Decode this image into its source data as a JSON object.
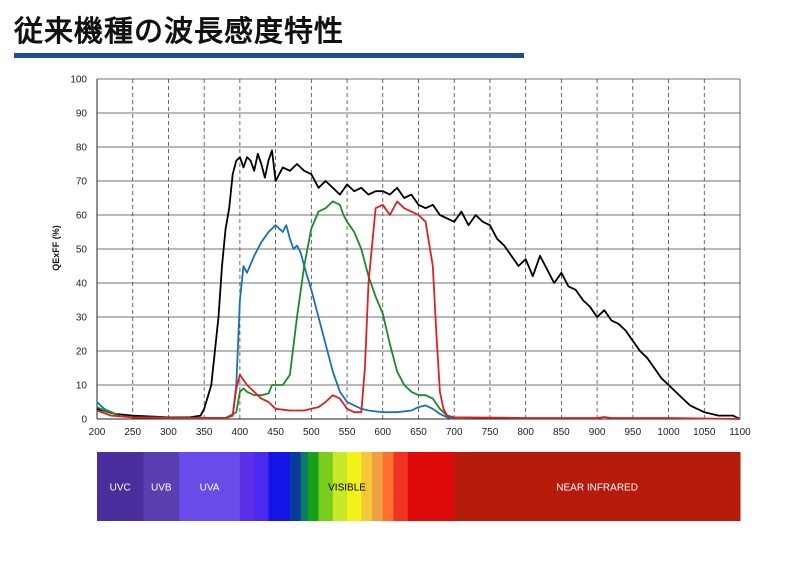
{
  "title": "従来機種の波長感度特性",
  "colors": {
    "accent": "#1f4e8c",
    "grid": "#444444"
  },
  "chart_data": {
    "type": "line",
    "title": "",
    "xlabel": "",
    "ylabel": "QExFF (%)",
    "xlim": [
      200,
      1100
    ],
    "ylim": [
      0,
      100
    ],
    "x_ticks": [
      200,
      250,
      300,
      350,
      400,
      450,
      500,
      550,
      600,
      650,
      700,
      750,
      800,
      850,
      900,
      950,
      1000,
      1050,
      1100
    ],
    "y_ticks": [
      0,
      10,
      20,
      30,
      40,
      50,
      60,
      70,
      80,
      90,
      100
    ],
    "grid": "vertical dashed, horizontal solid",
    "series": [
      {
        "color": "#000000",
        "points": [
          [
            200,
            3
          ],
          [
            225,
            1.5
          ],
          [
            250,
            1
          ],
          [
            300,
            0.5
          ],
          [
            330,
            0.5
          ],
          [
            345,
            1
          ],
          [
            350,
            3
          ],
          [
            360,
            10
          ],
          [
            370,
            30
          ],
          [
            375,
            45
          ],
          [
            380,
            56
          ],
          [
            385,
            62
          ],
          [
            390,
            72
          ],
          [
            395,
            76
          ],
          [
            400,
            77
          ],
          [
            405,
            74
          ],
          [
            410,
            77
          ],
          [
            415,
            76
          ],
          [
            420,
            73
          ],
          [
            425,
            78
          ],
          [
            430,
            75
          ],
          [
            435,
            71
          ],
          [
            440,
            76
          ],
          [
            445,
            79
          ],
          [
            450,
            70
          ],
          [
            455,
            72
          ],
          [
            460,
            74
          ],
          [
            470,
            73
          ],
          [
            480,
            75
          ],
          [
            490,
            73
          ],
          [
            500,
            72
          ],
          [
            510,
            68
          ],
          [
            520,
            70
          ],
          [
            530,
            68
          ],
          [
            540,
            66
          ],
          [
            550,
            69
          ],
          [
            560,
            67
          ],
          [
            570,
            68
          ],
          [
            580,
            66
          ],
          [
            590,
            67
          ],
          [
            600,
            67
          ],
          [
            610,
            66
          ],
          [
            620,
            68
          ],
          [
            630,
            65
          ],
          [
            640,
            66
          ],
          [
            650,
            63
          ],
          [
            660,
            62
          ],
          [
            670,
            63
          ],
          [
            680,
            60
          ],
          [
            690,
            59
          ],
          [
            700,
            58
          ],
          [
            710,
            61
          ],
          [
            720,
            57
          ],
          [
            730,
            60
          ],
          [
            740,
            58
          ],
          [
            750,
            57
          ],
          [
            760,
            53
          ],
          [
            770,
            51
          ],
          [
            780,
            48
          ],
          [
            790,
            45
          ],
          [
            800,
            47
          ],
          [
            810,
            42
          ],
          [
            820,
            48
          ],
          [
            830,
            44
          ],
          [
            840,
            40
          ],
          [
            850,
            43
          ],
          [
            860,
            39
          ],
          [
            870,
            38
          ],
          [
            880,
            35
          ],
          [
            890,
            33
          ],
          [
            900,
            30
          ],
          [
            910,
            32
          ],
          [
            920,
            29
          ],
          [
            930,
            28
          ],
          [
            940,
            26
          ],
          [
            950,
            23
          ],
          [
            960,
            20
          ],
          [
            970,
            18
          ],
          [
            980,
            15
          ],
          [
            990,
            12
          ],
          [
            1000,
            10
          ],
          [
            1010,
            8
          ],
          [
            1020,
            6
          ],
          [
            1030,
            4
          ],
          [
            1040,
            3
          ],
          [
            1050,
            2
          ],
          [
            1060,
            1.5
          ],
          [
            1070,
            1
          ],
          [
            1080,
            1
          ],
          [
            1090,
            1
          ],
          [
            1100,
            0
          ]
        ]
      },
      {
        "color": "#1b6fb5",
        "points": [
          [
            200,
            5
          ],
          [
            210,
            3
          ],
          [
            220,
            2
          ],
          [
            230,
            1
          ],
          [
            250,
            0.5
          ],
          [
            380,
            0.3
          ],
          [
            390,
            1
          ],
          [
            395,
            10
          ],
          [
            400,
            35
          ],
          [
            405,
            45
          ],
          [
            410,
            43
          ],
          [
            420,
            48
          ],
          [
            430,
            52
          ],
          [
            440,
            55
          ],
          [
            450,
            57
          ],
          [
            460,
            55
          ],
          [
            465,
            57
          ],
          [
            470,
            53
          ],
          [
            475,
            50
          ],
          [
            480,
            51
          ],
          [
            485,
            49
          ],
          [
            490,
            45
          ],
          [
            500,
            38
          ],
          [
            510,
            30
          ],
          [
            520,
            22
          ],
          [
            530,
            14
          ],
          [
            540,
            8
          ],
          [
            550,
            5
          ],
          [
            560,
            4
          ],
          [
            570,
            3
          ],
          [
            580,
            2.5
          ],
          [
            600,
            2
          ],
          [
            620,
            2
          ],
          [
            640,
            2.5
          ],
          [
            650,
            3.5
          ],
          [
            660,
            4
          ],
          [
            670,
            3
          ],
          [
            680,
            1.5
          ],
          [
            690,
            0.5
          ],
          [
            700,
            0
          ]
        ]
      },
      {
        "color": "#1b8a2a",
        "points": [
          [
            200,
            3.5
          ],
          [
            210,
            2.5
          ],
          [
            220,
            2
          ],
          [
            230,
            1
          ],
          [
            250,
            0.5
          ],
          [
            380,
            0.3
          ],
          [
            395,
            2
          ],
          [
            400,
            8
          ],
          [
            405,
            9
          ],
          [
            410,
            8
          ],
          [
            420,
            7
          ],
          [
            430,
            7
          ],
          [
            440,
            7.5
          ],
          [
            445,
            10
          ],
          [
            450,
            10
          ],
          [
            460,
            10
          ],
          [
            470,
            13
          ],
          [
            480,
            30
          ],
          [
            490,
            45
          ],
          [
            500,
            56
          ],
          [
            510,
            61
          ],
          [
            520,
            62
          ],
          [
            530,
            64
          ],
          [
            540,
            63
          ],
          [
            545,
            60
          ],
          [
            550,
            58
          ],
          [
            560,
            55
          ],
          [
            570,
            50
          ],
          [
            580,
            42
          ],
          [
            590,
            36
          ],
          [
            600,
            31
          ],
          [
            610,
            22
          ],
          [
            620,
            14
          ],
          [
            630,
            10
          ],
          [
            640,
            8
          ],
          [
            650,
            7
          ],
          [
            660,
            7
          ],
          [
            670,
            6
          ],
          [
            680,
            3
          ],
          [
            690,
            1
          ],
          [
            700,
            0.3
          ]
        ]
      },
      {
        "color": "#e02020",
        "points": [
          [
            200,
            2.5
          ],
          [
            220,
            1
          ],
          [
            250,
            0.5
          ],
          [
            300,
            0.3
          ],
          [
            380,
            0.3
          ],
          [
            390,
            1
          ],
          [
            395,
            9
          ],
          [
            400,
            13
          ],
          [
            410,
            10
          ],
          [
            420,
            8
          ],
          [
            430,
            6
          ],
          [
            440,
            5
          ],
          [
            450,
            3
          ],
          [
            470,
            2.5
          ],
          [
            490,
            2.5
          ],
          [
            500,
            3
          ],
          [
            510,
            3.5
          ],
          [
            520,
            5
          ],
          [
            530,
            7
          ],
          [
            540,
            6
          ],
          [
            550,
            3
          ],
          [
            560,
            2
          ],
          [
            570,
            2
          ],
          [
            575,
            15
          ],
          [
            580,
            40
          ],
          [
            590,
            62
          ],
          [
            600,
            63
          ],
          [
            610,
            60
          ],
          [
            620,
            64
          ],
          [
            630,
            62
          ],
          [
            640,
            61
          ],
          [
            650,
            60
          ],
          [
            660,
            58
          ],
          [
            670,
            45
          ],
          [
            675,
            25
          ],
          [
            680,
            8
          ],
          [
            685,
            3
          ],
          [
            690,
            1
          ],
          [
            700,
            0.5
          ],
          [
            800,
            0.3
          ],
          [
            900,
            0.3
          ],
          [
            910,
            0.6
          ],
          [
            920,
            0.3
          ],
          [
            1000,
            0.3
          ],
          [
            1100,
            0
          ]
        ]
      }
    ]
  },
  "spectrum_bands": [
    {
      "from": 200,
      "to": 265,
      "color": "#4b2e9e",
      "label": "UVC"
    },
    {
      "from": 265,
      "to": 315,
      "color": "#5a3fb0",
      "label": "UVB"
    },
    {
      "from": 315,
      "to": 400,
      "color": "#6a4ae8",
      "label": "UVA"
    },
    {
      "from": 400,
      "to": 420,
      "color": "#5a2fe6",
      "label": ""
    },
    {
      "from": 420,
      "to": 440,
      "color": "#4a2aef",
      "label": ""
    },
    {
      "from": 440,
      "to": 470,
      "color": "#1515e8",
      "label": ""
    },
    {
      "from": 470,
      "to": 485,
      "color": "#0a3a9a",
      "label": ""
    },
    {
      "from": 485,
      "to": 495,
      "color": "#0a7a6a",
      "label": ""
    },
    {
      "from": 495,
      "to": 510,
      "color": "#18a018",
      "label": ""
    },
    {
      "from": 510,
      "to": 530,
      "color": "#7acc1a",
      "label": ""
    },
    {
      "from": 530,
      "to": 550,
      "color": "#c8e82a",
      "label": ""
    },
    {
      "from": 550,
      "to": 570,
      "color": "#f2f21a",
      "label": ""
    },
    {
      "from": 570,
      "to": 585,
      "color": "#f2c83a",
      "label": ""
    },
    {
      "from": 585,
      "to": 600,
      "color": "#f0a040",
      "label": ""
    },
    {
      "from": 600,
      "to": 615,
      "color": "#ff7030",
      "label": ""
    },
    {
      "from": 615,
      "to": 635,
      "color": "#ee3322",
      "label": ""
    },
    {
      "from": 635,
      "to": 700,
      "color": "#dd0a0a",
      "label": ""
    },
    {
      "from": 700,
      "to": 1100,
      "color": "#b51a0a",
      "label": "NEAR INFRARED"
    }
  ],
  "visible_label": "VISIBLE"
}
